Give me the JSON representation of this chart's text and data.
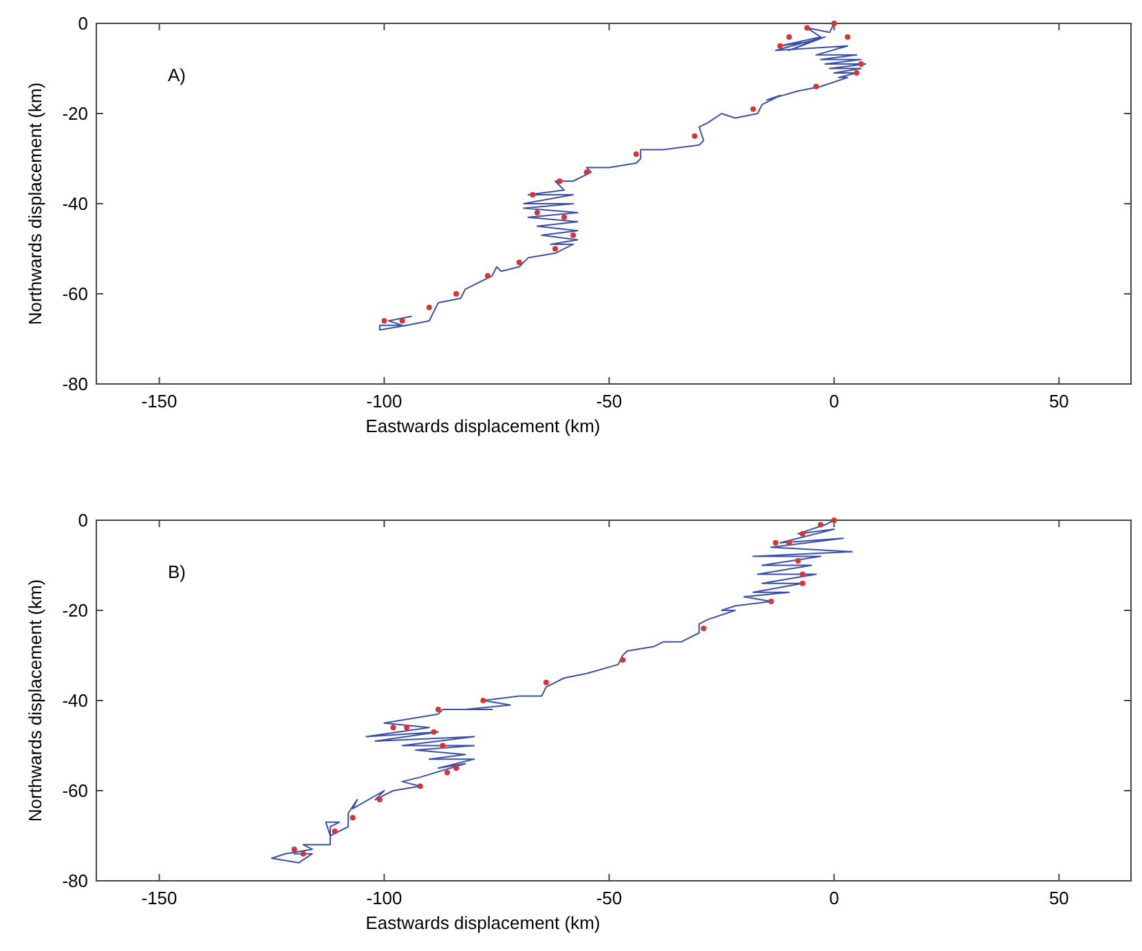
{
  "chart_data": [
    {
      "type": "line",
      "xlabel": "Eastwards displacement (km)",
      "ylabel": "Northwards displacement (km)",
      "annotations": [
        "A)"
      ],
      "xlim": [
        -164,
        66
      ],
      "xticks": [
        -150,
        -100,
        -50,
        0,
        50
      ],
      "ylim": [
        -80,
        0
      ],
      "yticks": [
        0,
        -20,
        -40,
        -60,
        -80
      ],
      "series": [
        {
          "color": "#3a4fa8",
          "marker": "none",
          "x": [
            0,
            -1,
            -6,
            -3,
            -12,
            -5,
            -10,
            -2,
            -13,
            3,
            -4,
            5,
            -3,
            6,
            -2,
            7,
            -1,
            6,
            0,
            5,
            1,
            3,
            -3,
            -8,
            -15,
            -12,
            -16,
            -17,
            -22,
            -25,
            -28,
            -30,
            -29,
            -30,
            -38,
            -43,
            -43,
            -44,
            -50,
            -55,
            -54,
            -58,
            -62,
            -60,
            -68,
            -58,
            -69,
            -58,
            -69,
            -57,
            -68,
            -57,
            -66,
            -57,
            -65,
            -57,
            -63,
            -58,
            -62,
            -68,
            -70,
            -74,
            -75,
            -76,
            -80,
            -82,
            -83,
            -88,
            -89,
            -90,
            -95,
            -101,
            -101,
            -96,
            -99,
            -94
          ],
          "values": [
            0,
            -2,
            -1,
            -3,
            -5,
            -4,
            -6,
            -3,
            -6,
            -5,
            -7,
            -7,
            -8,
            -8,
            -9,
            -9,
            -10,
            -10,
            -11,
            -11,
            -12,
            -12,
            -14,
            -15,
            -17,
            -16,
            -18,
            -20,
            -21,
            -20,
            -22,
            -23,
            -26,
            -27,
            -28,
            -28,
            -30,
            -31,
            -32,
            -32,
            -33,
            -35,
            -35,
            -37,
            -38,
            -38,
            -40,
            -40,
            -41,
            -42,
            -43,
            -44,
            -45,
            -46,
            -47,
            -48,
            -49,
            -49,
            -51,
            -52,
            -54,
            -55,
            -54,
            -56,
            -58,
            -59,
            -61,
            -62,
            -64,
            -66,
            -67,
            -68,
            -67,
            -67,
            -66,
            -65
          ]
        },
        {
          "type": "scatter",
          "color": "#e03030",
          "marker": "circle",
          "x": [
            0,
            -6,
            -10,
            -12,
            3,
            6,
            5,
            -4,
            -18,
            -31,
            -44,
            -55,
            -61,
            -67,
            -66,
            -60,
            -58,
            -62,
            -70,
            -77,
            -84,
            -90,
            -96,
            -100
          ],
          "values": [
            0,
            -1,
            -3,
            -5,
            -3,
            -9,
            -11,
            -14,
            -19,
            -25,
            -29,
            -33,
            -35,
            -38,
            -42,
            -43,
            -47,
            -50,
            -53,
            -56,
            -60,
            -63,
            -66,
            -66
          ]
        }
      ]
    },
    {
      "type": "line",
      "xlabel": "Eastwards displacement (km)",
      "ylabel": "Northwards displacement (km)",
      "annotations": [
        "B)"
      ],
      "xlim": [
        -164,
        66
      ],
      "xticks": [
        -150,
        -100,
        -50,
        0,
        50
      ],
      "ylim": [
        -80,
        0
      ],
      "yticks": [
        0,
        -20,
        -40,
        -60,
        -80
      ],
      "series": [
        {
          "color": "#3a4fa8",
          "marker": "none",
          "x": [
            0,
            -2,
            -8,
            0,
            -12,
            2,
            -14,
            4,
            -18,
            -3,
            -16,
            -5,
            -17,
            -4,
            -16,
            -7,
            -18,
            -10,
            -20,
            -14,
            -22,
            -25,
            -22,
            -28,
            -30,
            -30,
            -34,
            -38,
            -40,
            -46,
            -47,
            -48,
            -55,
            -60,
            -62,
            -64,
            -65,
            -70,
            -78,
            -72,
            -82,
            -76,
            -87,
            -88,
            -100,
            -90,
            -104,
            -88,
            -102,
            -80,
            -96,
            -80,
            -93,
            -82,
            -90,
            -80,
            -88,
            -82,
            -92,
            -96,
            -92,
            -98,
            -102,
            -100,
            -107,
            -106,
            -108,
            -108,
            -112,
            -113,
            -110,
            -112,
            -112,
            -118,
            -116,
            -122,
            -125,
            -119,
            -116,
            -120
          ],
          "values": [
            0,
            -1,
            -3,
            -2,
            -5,
            -4,
            -6,
            -7,
            -8,
            -8,
            -10,
            -10,
            -12,
            -12,
            -14,
            -14,
            -16,
            -16,
            -17,
            -18,
            -19,
            -20,
            -20,
            -22,
            -23,
            -25,
            -27,
            -27,
            -28,
            -29,
            -30,
            -32,
            -34,
            -35,
            -36,
            -37,
            -39,
            -39,
            -40,
            -41,
            -42,
            -42,
            -42,
            -43,
            -45,
            -46,
            -48,
            -47,
            -49,
            -48,
            -50,
            -50,
            -51,
            -52,
            -53,
            -53,
            -55,
            -54,
            -57,
            -58,
            -59,
            -60,
            -62,
            -60,
            -64,
            -62,
            -65,
            -68,
            -70,
            -67,
            -67,
            -68,
            -72,
            -72,
            -73,
            -74,
            -75,
            -76,
            -74,
            -74
          ]
        },
        {
          "type": "scatter",
          "color": "#e03030",
          "marker": "circle",
          "x": [
            0,
            -3,
            -7,
            -10,
            -13,
            -8,
            -7,
            -7,
            -14,
            -29,
            -47,
            -64,
            -78,
            -88,
            -98,
            -95,
            -89,
            -87,
            -84,
            -86,
            -92,
            -101,
            -107,
            -111,
            -118,
            -120
          ],
          "values": [
            0,
            -1,
            -3,
            -5,
            -5,
            -9,
            -12,
            -14,
            -18,
            -24,
            -31,
            -36,
            -40,
            -42,
            -46,
            -46,
            -47,
            -50,
            -55,
            -56,
            -59,
            -62,
            -66,
            -69,
            -74,
            -73
          ]
        }
      ]
    }
  ]
}
